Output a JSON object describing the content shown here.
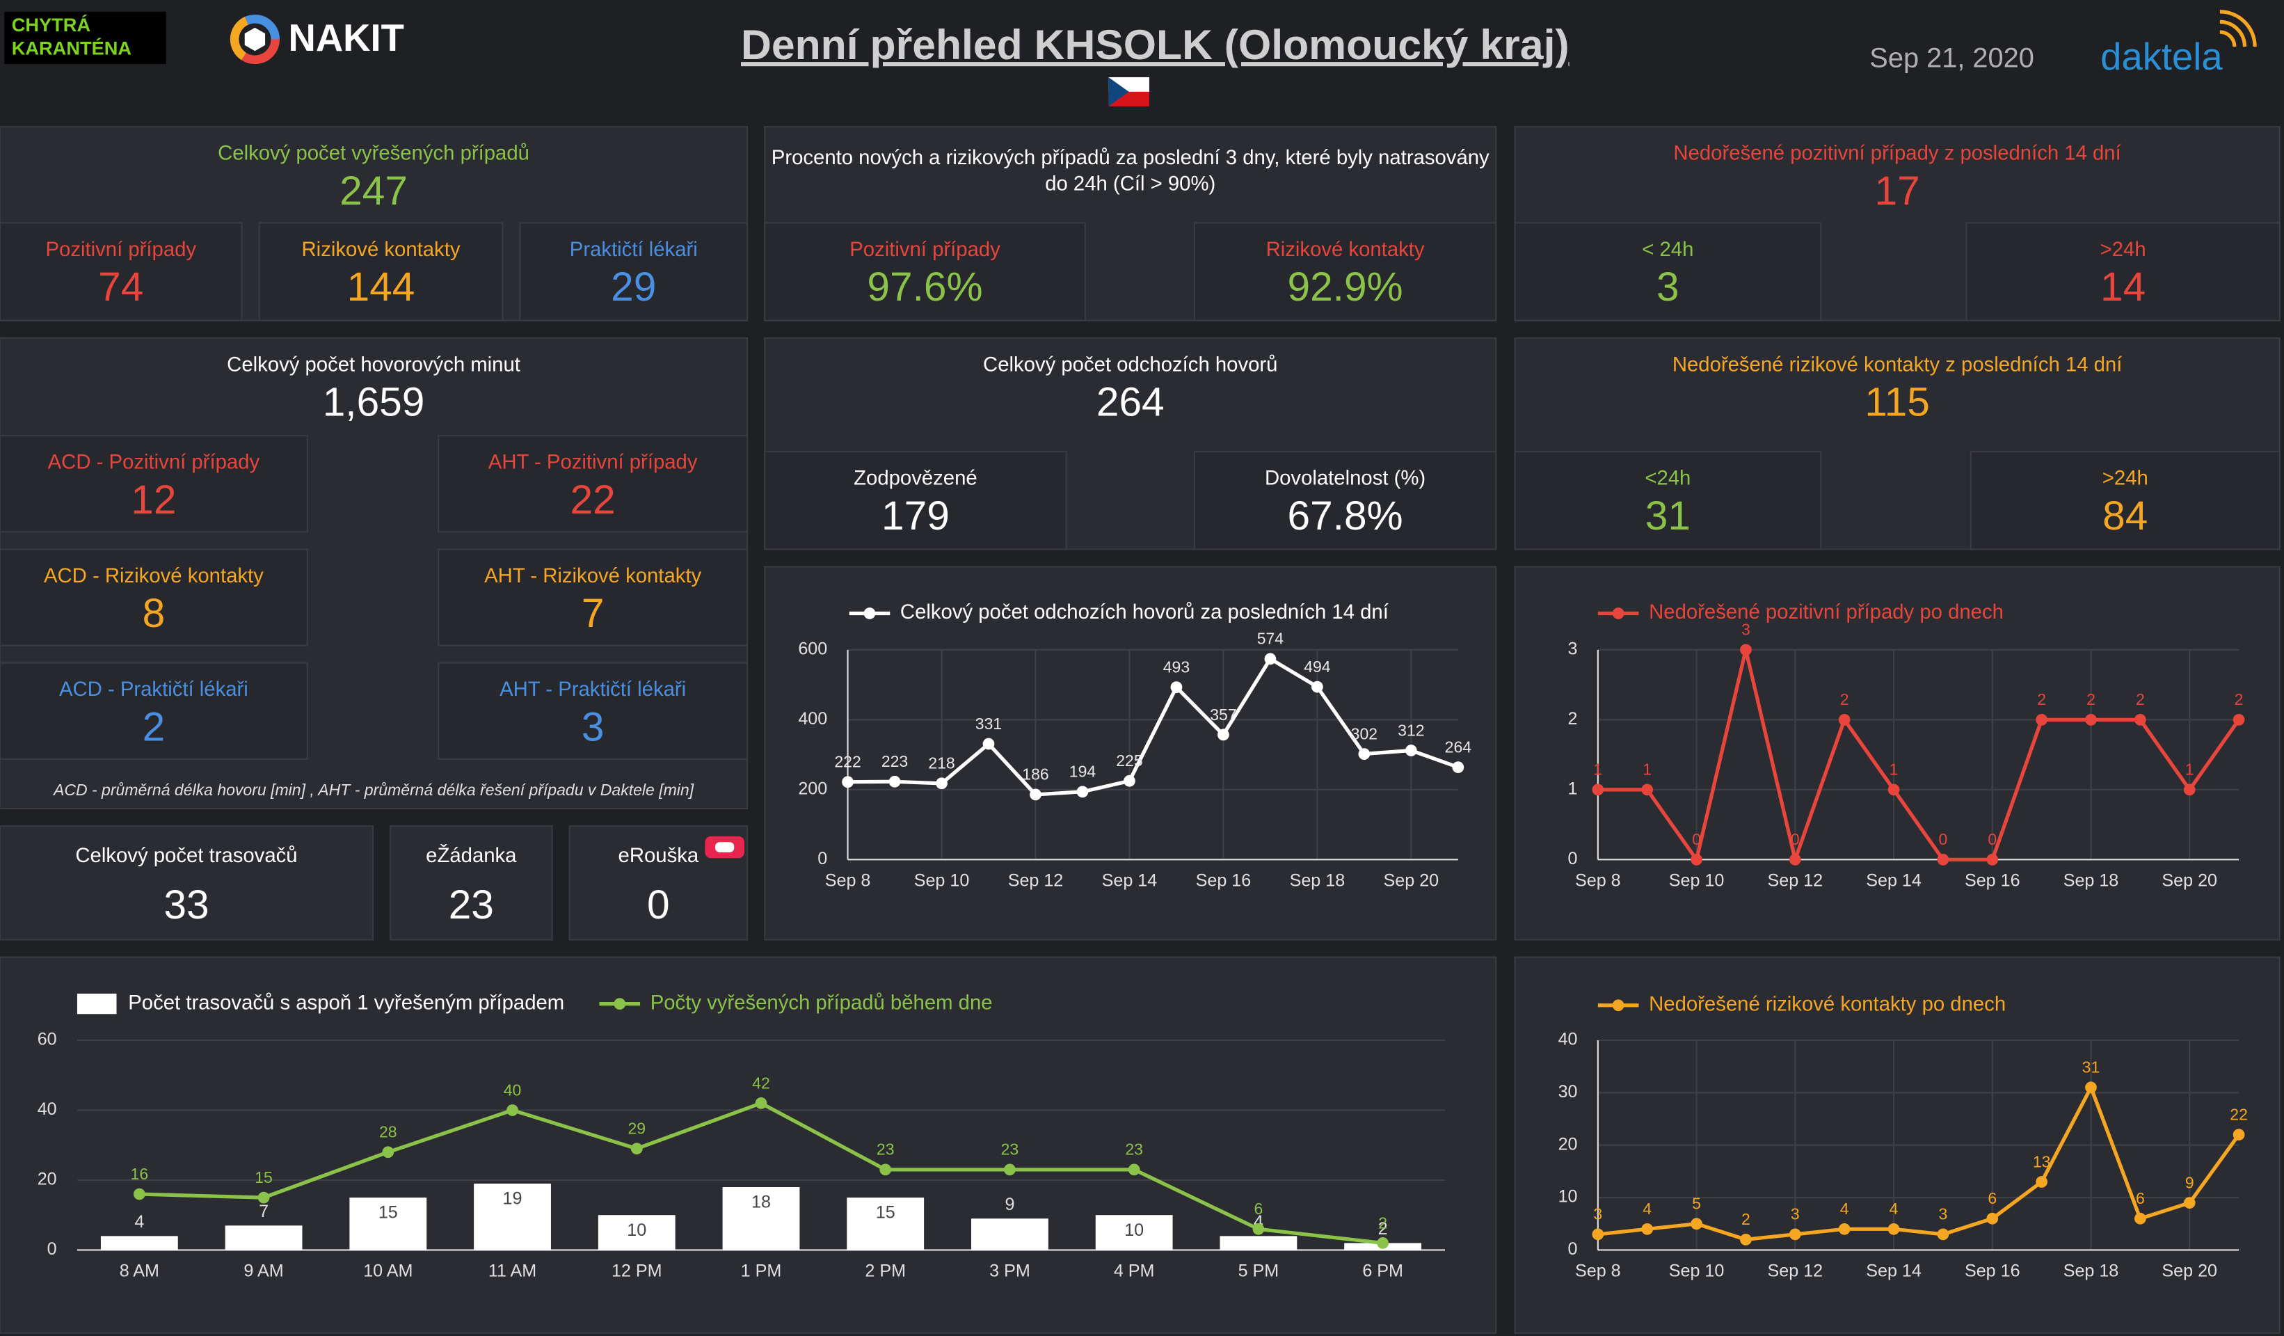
{
  "header": {
    "logo_text": [
      "CHYTRÁ",
      "KARANTÉNA"
    ],
    "brand": "NAKIT",
    "title": "Denní přehled KHSOLK (Olomoucký kraj)",
    "date": "Sep 21, 2020",
    "partner": "daktela"
  },
  "kpis": [
    {
      "title": "Celkový počet vyřešených případů",
      "value": "247",
      "items": [
        {
          "label": "Pozitivní případy",
          "value": "74"
        },
        {
          "label": "Rizikové kontakty",
          "value": "144"
        },
        {
          "label": "Praktičtí lékaři",
          "value": "29"
        }
      ]
    },
    {
      "title": [
        "Procento nových a rizikových případů za poslední 3 dny, které byly natrasovány",
        "do 24h (Cíl > 90%)"
      ],
      "items": [
        {
          "label": "Pozitivní případy",
          "value": "97.6%"
        },
        {
          "label": "Rizikové kontakty",
          "value": "92.9%"
        }
      ]
    },
    {
      "title": "Nedořešené pozitivní případy z posledních 14 dní",
      "value": "17",
      "items": [
        {
          "label": "< 24h",
          "value": "3"
        },
        {
          "label": ">24h",
          "value": "14"
        }
      ]
    },
    {
      "title": "Celkový počet hovorových minut",
      "value": "1,659",
      "items": [
        {
          "label": "ACD - Pozitivní případy",
          "value": "12"
        },
        {
          "label": "AHT - Pozitivní případy",
          "value": "22"
        },
        {
          "label": "ACD - Rizikové kontakty",
          "value": "8"
        },
        {
          "label": "AHT - Rizikové kontakty",
          "value": "7"
        },
        {
          "label": "ACD - Praktičtí lékaři",
          "value": "2"
        },
        {
          "label": "AHT - Praktičtí lékaři",
          "value": "3"
        }
      ],
      "note": "ACD - průměrná délka hovoru [min] , AHT - průměrná délka řešení případu v Daktele [min]"
    },
    {
      "title": "Celkový počet odchozích hovorů",
      "value": "264",
      "items": [
        {
          "label": "Zodpovězené",
          "value": "179"
        },
        {
          "label": "Dovolatelnost (%)",
          "value": "67.8%"
        }
      ]
    },
    {
      "title": "Nedořešené rizikové kontakty z posledních 14 dní",
      "value": "115",
      "items": [
        {
          "label": "<24h",
          "value": "31"
        },
        {
          "label": ">24h",
          "value": "84"
        }
      ]
    },
    {
      "items": [
        {
          "label": "Celkový počet trasovačů",
          "value": "33"
        },
        {
          "label": "eŽádanka",
          "value": "23"
        },
        {
          "label": "eRouška",
          "value": "0"
        }
      ]
    }
  ],
  "chart_data": [
    {
      "type": "line",
      "title": "Celkový počet odchozích hovorů za posledních 14 dní",
      "color": "#ffffff",
      "categories": [
        "Sep 8",
        null,
        "Sep 10",
        null,
        "Sep 12",
        null,
        "Sep 14",
        null,
        "Sep 16",
        null,
        "Sep 18",
        null,
        "Sep 20",
        null
      ],
      "values": [
        222,
        223,
        218,
        331,
        186,
        194,
        225,
        493,
        357,
        574,
        494,
        302,
        312,
        264
      ],
      "ylim": [
        0,
        600
      ],
      "yticks": [
        0,
        200,
        400,
        600
      ],
      "grid": true
    },
    {
      "type": "line",
      "title": "Nedořešené pozitivní případy po dnech",
      "color": "#e8453c",
      "categories": [
        "Sep 8",
        null,
        "Sep 10",
        null,
        "Sep 12",
        null,
        "Sep 14",
        null,
        "Sep 16",
        null,
        "Sep 18",
        null,
        "Sep 20",
        null
      ],
      "values": [
        1,
        1,
        0,
        3,
        0,
        2,
        1,
        0,
        0,
        2,
        2,
        2,
        1,
        2
      ],
      "ylim": [
        0,
        3
      ],
      "yticks": [
        0,
        1,
        2,
        3
      ],
      "grid": true
    },
    {
      "type": "combo",
      "categories": [
        "8 AM",
        "9 AM",
        "10 AM",
        "11 AM",
        "12 PM",
        "1 PM",
        "2 PM",
        "3 PM",
        "4 PM",
        "5 PM",
        "6 PM"
      ],
      "series": [
        {
          "name": "Počet trasovačů s aspoň 1 vyřešeným případem",
          "type": "bar",
          "color": "#ffffff",
          "values": [
            4,
            7,
            15,
            19,
            10,
            18,
            15,
            9,
            10,
            4,
            2
          ]
        },
        {
          "name": "Počty vyřešených případů během dne",
          "type": "line",
          "color": "#8bc34a",
          "values": [
            16,
            15,
            28,
            40,
            29,
            42,
            23,
            23,
            23,
            6,
            2
          ]
        }
      ],
      "ylim": [
        0,
        60
      ],
      "yticks": [
        0,
        20,
        40,
        60
      ],
      "grid": true
    },
    {
      "type": "line",
      "title": "Nedořešené rizikové kontakty po dnech",
      "color": "#f5a623",
      "categories": [
        "Sep 8",
        null,
        "Sep 10",
        null,
        "Sep 12",
        null,
        "Sep 14",
        null,
        "Sep 16",
        null,
        "Sep 18",
        null,
        "Sep 20",
        null
      ],
      "values": [
        3,
        4,
        5,
        2,
        3,
        4,
        4,
        3,
        6,
        13,
        31,
        6,
        9,
        22
      ],
      "ylim": [
        0,
        40
      ],
      "yticks": [
        0,
        10,
        20,
        30,
        40
      ],
      "grid": true
    }
  ]
}
